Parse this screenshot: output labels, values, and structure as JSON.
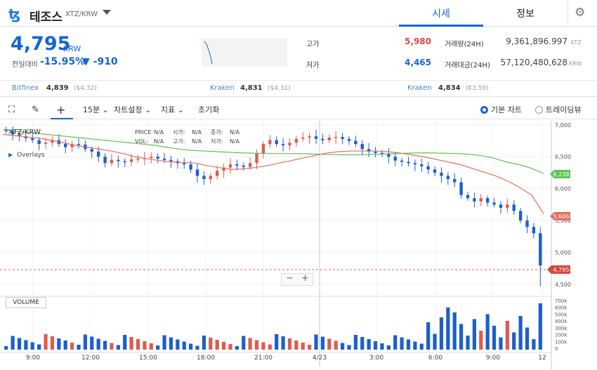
{
  "header": {
    "coin_name": "테조스",
    "pair": "XTZ/KRW",
    "tabs": [
      "시세",
      "정보"
    ],
    "active_tab": "시세"
  },
  "quote": {
    "price": "4,795",
    "unit": "KRW",
    "change_label": "전일대비",
    "change_pct": "-15.95%",
    "change_abs": "▼ -910",
    "high_label": "고가",
    "high": "5,980",
    "low_label": "저가",
    "low": "4,465",
    "volume_label": "거래량(24H)",
    "volume": "9,361,896.997",
    "volume_unit": "XTZ",
    "amount_label": "거래대금(24H)",
    "amount": "57,120,480,628",
    "amount_unit": "KRW"
  },
  "exchanges": [
    {
      "name": "Bitfinex",
      "price": "4,839",
      "sub": "($4.32)"
    },
    {
      "name": "Kraken",
      "price": "4,831",
      "sub": "($4.31)"
    },
    {
      "name": "Kraken",
      "price": "4,834",
      "sub": "(€3.59)"
    }
  ],
  "toolbar": {
    "interval": "15분",
    "settings": "차트설정",
    "indicators": "지표",
    "reset": "초기화",
    "basic_chart": "기본 차트",
    "tradingview": "트레이딩뷰"
  },
  "chart": {
    "symbol": "XTZ/KRW",
    "overlays": "Overlays",
    "info": {
      "price_l": "PRICE:",
      "price": "N/A",
      "open_l": "시가:",
      "open": "N/A",
      "close_l": "종가:",
      "close": "N/A",
      "vol_l": "VOL:",
      "vol": "N/A",
      "high_l": "고가:",
      "high": "N/A",
      "low_l": "저가:",
      "low": "N/A"
    },
    "volume_label": "VOLUME",
    "zoom_minus": "−",
    "zoom_plus": "+",
    "last_price": "4,795",
    "ma_green": "6,238",
    "ma_red": "5,606"
  },
  "colors": {
    "up": "#e05a4f",
    "down": "#1c5fcc",
    "ma_short": "#e56e5e",
    "ma_long": "#5cc352",
    "accent": "#1366d6"
  },
  "chart_data": {
    "type": "candlestick",
    "y_ticks": [
      "7,000",
      "6,500",
      "6,000",
      "5,500",
      "5,000",
      "4,500"
    ],
    "vol_ticks": [
      "700k",
      "600k",
      "500k",
      "400k",
      "300k",
      "200k",
      "100k",
      "0"
    ],
    "x_ticks": [
      "9:00",
      "12:00",
      "15:00",
      "18:00",
      "21:00",
      "4/23",
      "3:00",
      "6:00",
      "9:00",
      "12"
    ],
    "ylim": [
      4400,
      7020
    ],
    "close_path": [
      6900,
      6850,
      6820,
      6790,
      6760,
      6700,
      6720,
      6760,
      6700,
      6650,
      6700,
      6690,
      6620,
      6580,
      6500,
      6400,
      6450,
      6430,
      6420,
      6460,
      6470,
      6480,
      6500,
      6470,
      6450,
      6430,
      6400,
      6380,
      6300,
      6200,
      6150,
      6200,
      6280,
      6330,
      6380,
      6360,
      6340,
      6400,
      6550,
      6700,
      6760,
      6700,
      6680,
      6720,
      6780,
      6800,
      6820,
      6780,
      6760,
      6800,
      6810,
      6780,
      6750,
      6700,
      6620,
      6580,
      6560,
      6550,
      6500,
      6440,
      6420,
      6400,
      6380,
      6350,
      6300,
      6250,
      6200,
      6150,
      6100,
      5900,
      5850,
      5800,
      5850,
      5780,
      5750,
      5700,
      5750,
      5650,
      5500,
      5400,
      5300,
      4795
    ],
    "ma_green": [
      6930,
      6900,
      6880,
      6860,
      6840,
      6820,
      6800,
      6780,
      6760,
      6740,
      6720,
      6700,
      6680,
      6650,
      6620,
      6600,
      6590,
      6580,
      6570,
      6560,
      6555,
      6550,
      6550,
      6550,
      6545,
      6540,
      6535,
      6530,
      6530,
      6535,
      6540,
      6548,
      6555,
      6560,
      6560,
      6555,
      6550,
      6540,
      6520,
      6480,
      6420,
      6380,
      6320,
      6238
    ],
    "ma_red": [
      6850,
      6830,
      6810,
      6790,
      6760,
      6720,
      6680,
      6650,
      6620,
      6590,
      6550,
      6500,
      6470,
      6440,
      6420,
      6410,
      6400,
      6360,
      6330,
      6300,
      6310,
      6330,
      6360,
      6400,
      6440,
      6480,
      6520,
      6560,
      6580,
      6590,
      6590,
      6590,
      6580,
      6560,
      6530,
      6500,
      6460,
      6420,
      6380,
      6320,
      6260,
      6200,
      6120,
      6020,
      5900,
      5606
    ]
  }
}
